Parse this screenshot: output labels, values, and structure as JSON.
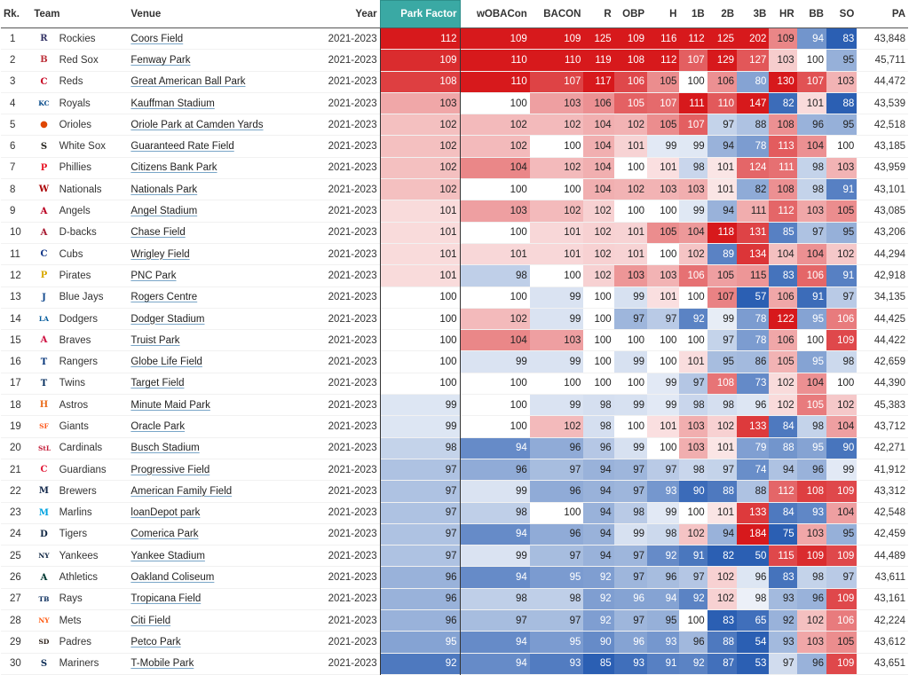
{
  "headers": {
    "rank": "Rk.",
    "team": "Team",
    "venue": "Venue",
    "year": "Year",
    "park_factor": "Park Factor",
    "woba": "wOBACon",
    "bacon": "BACON",
    "r": "R",
    "obp": "OBP",
    "h": "H",
    "b1": "1B",
    "b2": "2B",
    "b3": "3B",
    "hr": "HR",
    "bb": "BB",
    "so": "SO",
    "pa": "PA"
  },
  "rows": [
    {
      "rank": "1",
      "team": "Rockies",
      "logo_icon": "rockies-logo-icon",
      "logo_char": "R",
      "logo_color": "#333366",
      "venue": "Coors Field",
      "year": "2021-2023",
      "pf": "112",
      "woba": "109",
      "bacon": "109",
      "r": "125",
      "obp": "109",
      "h": "116",
      "b1": "112",
      "b2": "125",
      "b3": "202",
      "hr": "109",
      "bb": "94",
      "so": "83",
      "pa": "43,848"
    },
    {
      "rank": "2",
      "team": "Red Sox",
      "logo_icon": "red-sox-logo-icon",
      "logo_char": "B",
      "logo_color": "#bd3039",
      "venue": "Fenway Park",
      "year": "2021-2023",
      "pf": "109",
      "woba": "110",
      "bacon": "110",
      "r": "119",
      "obp": "108",
      "h": "112",
      "b1": "107",
      "b2": "129",
      "b3": "127",
      "hr": "103",
      "bb": "100",
      "so": "95",
      "pa": "45,711"
    },
    {
      "rank": "3",
      "team": "Reds",
      "logo_icon": "reds-logo-icon",
      "logo_char": "C",
      "logo_color": "#c6011f",
      "venue": "Great American Ball Park",
      "year": "2021-2023",
      "pf": "108",
      "woba": "110",
      "bacon": "107",
      "r": "117",
      "obp": "106",
      "h": "105",
      "b1": "100",
      "b2": "106",
      "b3": "80",
      "hr": "130",
      "bb": "107",
      "so": "103",
      "pa": "44,472"
    },
    {
      "rank": "4",
      "team": "Royals",
      "logo_icon": "royals-logo-icon",
      "logo_char": "KC",
      "logo_color": "#004687",
      "venue": "Kauffman Stadium",
      "year": "2021-2023",
      "pf": "103",
      "woba": "100",
      "bacon": "103",
      "r": "106",
      "obp": "105",
      "h": "107",
      "b1": "111",
      "b2": "110",
      "b3": "147",
      "hr": "82",
      "bb": "101",
      "so": "88",
      "pa": "43,539"
    },
    {
      "rank": "5",
      "team": "Orioles",
      "logo_icon": "orioles-logo-icon",
      "logo_char": "●",
      "logo_color": "#df4601",
      "venue": "Oriole Park at Camden Yards",
      "year": "2021-2023",
      "pf": "102",
      "woba": "102",
      "bacon": "102",
      "r": "104",
      "obp": "102",
      "h": "105",
      "b1": "107",
      "b2": "97",
      "b3": "88",
      "hr": "108",
      "bb": "96",
      "so": "95",
      "pa": "42,518"
    },
    {
      "rank": "6",
      "team": "White Sox",
      "logo_icon": "white-sox-logo-icon",
      "logo_char": "S",
      "logo_color": "#27251f",
      "venue": "Guaranteed Rate Field",
      "year": "2021-2023",
      "pf": "102",
      "woba": "102",
      "bacon": "100",
      "r": "104",
      "obp": "101",
      "h": "99",
      "b1": "99",
      "b2": "94",
      "b3": "78",
      "hr": "113",
      "bb": "104",
      "so": "100",
      "pa": "43,185"
    },
    {
      "rank": "7",
      "team": "Phillies",
      "logo_icon": "phillies-logo-icon",
      "logo_char": "P",
      "logo_color": "#e81828",
      "venue": "Citizens Bank Park",
      "year": "2021-2023",
      "pf": "102",
      "woba": "104",
      "bacon": "102",
      "r": "104",
      "obp": "100",
      "h": "101",
      "b1": "98",
      "b2": "101",
      "b3": "124",
      "hr": "111",
      "bb": "98",
      "so": "103",
      "pa": "43,959"
    },
    {
      "rank": "8",
      "team": "Nationals",
      "logo_icon": "nationals-logo-icon",
      "logo_char": "W",
      "logo_color": "#ab0003",
      "venue": "Nationals Park",
      "year": "2021-2023",
      "pf": "102",
      "woba": "100",
      "bacon": "100",
      "r": "104",
      "obp": "102",
      "h": "103",
      "b1": "103",
      "b2": "101",
      "b3": "82",
      "hr": "108",
      "bb": "98",
      "so": "91",
      "pa": "43,101"
    },
    {
      "rank": "9",
      "team": "Angels",
      "logo_icon": "angels-logo-icon",
      "logo_char": "A",
      "logo_color": "#ba0021",
      "venue": "Angel Stadium",
      "year": "2021-2023",
      "pf": "101",
      "woba": "103",
      "bacon": "102",
      "r": "102",
      "obp": "100",
      "h": "100",
      "b1": "99",
      "b2": "94",
      "b3": "111",
      "hr": "112",
      "bb": "103",
      "so": "105",
      "pa": "43,085"
    },
    {
      "rank": "10",
      "team": "D-backs",
      "logo_icon": "dbacks-logo-icon",
      "logo_char": "A",
      "logo_color": "#a71930",
      "venue": "Chase Field",
      "year": "2021-2023",
      "pf": "101",
      "woba": "100",
      "bacon": "101",
      "r": "102",
      "obp": "101",
      "h": "105",
      "b1": "104",
      "b2": "118",
      "b3": "131",
      "hr": "85",
      "bb": "97",
      "so": "95",
      "pa": "43,206"
    },
    {
      "rank": "11",
      "team": "Cubs",
      "logo_icon": "cubs-logo-icon",
      "logo_char": "C",
      "logo_color": "#0e3386",
      "venue": "Wrigley Field",
      "year": "2021-2023",
      "pf": "101",
      "woba": "101",
      "bacon": "101",
      "r": "102",
      "obp": "101",
      "h": "100",
      "b1": "102",
      "b2": "89",
      "b3": "134",
      "hr": "104",
      "bb": "104",
      "so": "102",
      "pa": "44,294"
    },
    {
      "rank": "12",
      "team": "Pirates",
      "logo_icon": "pirates-logo-icon",
      "logo_char": "P",
      "logo_color": "#d8a800",
      "venue": "PNC Park",
      "year": "2021-2023",
      "pf": "101",
      "woba": "98",
      "bacon": "100",
      "r": "102",
      "obp": "103",
      "h": "103",
      "b1": "106",
      "b2": "105",
      "b3": "115",
      "hr": "83",
      "bb": "106",
      "so": "91",
      "pa": "42,918"
    },
    {
      "rank": "13",
      "team": "Blue Jays",
      "logo_icon": "blue-jays-logo-icon",
      "logo_char": "J",
      "logo_color": "#134a8e",
      "venue": "Rogers Centre",
      "year": "2021-2023",
      "pf": "100",
      "woba": "100",
      "bacon": "99",
      "r": "100",
      "obp": "99",
      "h": "101",
      "b1": "100",
      "b2": "107",
      "b3": "57",
      "hr": "106",
      "bb": "91",
      "so": "97",
      "pa": "34,135"
    },
    {
      "rank": "14",
      "team": "Dodgers",
      "logo_icon": "dodgers-logo-icon",
      "logo_char": "LA",
      "logo_color": "#005a9c",
      "venue": "Dodger Stadium",
      "year": "2021-2023",
      "pf": "100",
      "woba": "102",
      "bacon": "99",
      "r": "100",
      "obp": "97",
      "h": "97",
      "b1": "92",
      "b2": "99",
      "b3": "78",
      "hr": "122",
      "bb": "95",
      "so": "106",
      "pa": "44,425"
    },
    {
      "rank": "15",
      "team": "Braves",
      "logo_icon": "braves-logo-icon",
      "logo_char": "A",
      "logo_color": "#ce1141",
      "venue": "Truist Park",
      "year": "2021-2023",
      "pf": "100",
      "woba": "104",
      "bacon": "103",
      "r": "100",
      "obp": "100",
      "h": "100",
      "b1": "100",
      "b2": "97",
      "b3": "78",
      "hr": "106",
      "bb": "100",
      "so": "109",
      "pa": "44,422"
    },
    {
      "rank": "16",
      "team": "Rangers",
      "logo_icon": "rangers-logo-icon",
      "logo_char": "T",
      "logo_color": "#003278",
      "venue": "Globe Life Field",
      "year": "2021-2023",
      "pf": "100",
      "woba": "99",
      "bacon": "99",
      "r": "100",
      "obp": "99",
      "h": "100",
      "b1": "101",
      "b2": "95",
      "b3": "86",
      "hr": "105",
      "bb": "95",
      "so": "98",
      "pa": "42,659"
    },
    {
      "rank": "17",
      "team": "Twins",
      "logo_icon": "twins-logo-icon",
      "logo_char": "T",
      "logo_color": "#002b5c",
      "venue": "Target Field",
      "year": "2021-2023",
      "pf": "100",
      "woba": "100",
      "bacon": "100",
      "r": "100",
      "obp": "100",
      "h": "99",
      "b1": "97",
      "b2": "108",
      "b3": "73",
      "hr": "102",
      "bb": "104",
      "so": "100",
      "pa": "44,390"
    },
    {
      "rank": "18",
      "team": "Astros",
      "logo_icon": "astros-logo-icon",
      "logo_char": "H",
      "logo_color": "#eb6e1f",
      "venue": "Minute Maid Park",
      "year": "2021-2023",
      "pf": "99",
      "woba": "100",
      "bacon": "99",
      "r": "98",
      "obp": "99",
      "h": "99",
      "b1": "98",
      "b2": "98",
      "b3": "96",
      "hr": "102",
      "bb": "105",
      "so": "102",
      "pa": "45,383"
    },
    {
      "rank": "19",
      "team": "Giants",
      "logo_icon": "giants-logo-icon",
      "logo_char": "SF",
      "logo_color": "#fd5a1e",
      "venue": "Oracle Park",
      "year": "2021-2023",
      "pf": "99",
      "woba": "100",
      "bacon": "102",
      "r": "98",
      "obp": "100",
      "h": "101",
      "b1": "103",
      "b2": "102",
      "b3": "133",
      "hr": "84",
      "bb": "98",
      "so": "104",
      "pa": "43,712"
    },
    {
      "rank": "20",
      "team": "Cardinals",
      "logo_icon": "cardinals-logo-icon",
      "logo_char": "StL",
      "logo_color": "#c41e3a",
      "venue": "Busch Stadium",
      "year": "2021-2023",
      "pf": "98",
      "woba": "94",
      "bacon": "96",
      "r": "96",
      "obp": "99",
      "h": "100",
      "b1": "103",
      "b2": "101",
      "b3": "79",
      "hr": "88",
      "bb": "95",
      "so": "90",
      "pa": "42,271"
    },
    {
      "rank": "21",
      "team": "Guardians",
      "logo_icon": "guardians-logo-icon",
      "logo_char": "C",
      "logo_color": "#e31937",
      "venue": "Progressive Field",
      "year": "2021-2023",
      "pf": "97",
      "woba": "96",
      "bacon": "97",
      "r": "94",
      "obp": "97",
      "h": "97",
      "b1": "98",
      "b2": "97",
      "b3": "74",
      "hr": "94",
      "bb": "96",
      "so": "99",
      "pa": "41,912"
    },
    {
      "rank": "22",
      "team": "Brewers",
      "logo_icon": "brewers-logo-icon",
      "logo_char": "M",
      "logo_color": "#12284b",
      "venue": "American Family Field",
      "year": "2021-2023",
      "pf": "97",
      "woba": "99",
      "bacon": "96",
      "r": "94",
      "obp": "97",
      "h": "93",
      "b1": "90",
      "b2": "88",
      "b3": "88",
      "hr": "112",
      "bb": "108",
      "so": "109",
      "pa": "43,312"
    },
    {
      "rank": "23",
      "team": "Marlins",
      "logo_icon": "marlins-logo-icon",
      "logo_char": "M",
      "logo_color": "#00a3e0",
      "venue": "loanDepot park",
      "year": "2021-2023",
      "pf": "97",
      "woba": "98",
      "bacon": "100",
      "r": "94",
      "obp": "98",
      "h": "99",
      "b1": "100",
      "b2": "101",
      "b3": "133",
      "hr": "84",
      "bb": "93",
      "so": "104",
      "pa": "42,548"
    },
    {
      "rank": "24",
      "team": "Tigers",
      "logo_icon": "tigers-logo-icon",
      "logo_char": "D",
      "logo_color": "#0c2340",
      "venue": "Comerica Park",
      "year": "2021-2023",
      "pf": "97",
      "woba": "94",
      "bacon": "96",
      "r": "94",
      "obp": "99",
      "h": "98",
      "b1": "102",
      "b2": "94",
      "b3": "184",
      "hr": "75",
      "bb": "103",
      "so": "95",
      "pa": "42,459"
    },
    {
      "rank": "25",
      "team": "Yankees",
      "logo_icon": "yankees-logo-icon",
      "logo_char": "NY",
      "logo_color": "#0c2340",
      "venue": "Yankee Stadium",
      "year": "2021-2023",
      "pf": "97",
      "woba": "99",
      "bacon": "97",
      "r": "94",
      "obp": "97",
      "h": "92",
      "b1": "91",
      "b2": "82",
      "b3": "50",
      "hr": "115",
      "bb": "109",
      "so": "109",
      "pa": "44,489"
    },
    {
      "rank": "26",
      "team": "Athletics",
      "logo_icon": "athletics-logo-icon",
      "logo_char": "A",
      "logo_color": "#003831",
      "venue": "Oakland Coliseum",
      "year": "2021-2023",
      "pf": "96",
      "woba": "94",
      "bacon": "95",
      "r": "92",
      "obp": "97",
      "h": "96",
      "b1": "97",
      "b2": "102",
      "b3": "96",
      "hr": "83",
      "bb": "98",
      "so": "97",
      "pa": "43,611"
    },
    {
      "rank": "27",
      "team": "Rays",
      "logo_icon": "rays-logo-icon",
      "logo_char": "TB",
      "logo_color": "#092c5c",
      "venue": "Tropicana Field",
      "year": "2021-2023",
      "pf": "96",
      "woba": "98",
      "bacon": "98",
      "r": "92",
      "obp": "96",
      "h": "94",
      "b1": "92",
      "b2": "102",
      "b3": "98",
      "hr": "93",
      "bb": "96",
      "so": "109",
      "pa": "43,161"
    },
    {
      "rank": "28",
      "team": "Mets",
      "logo_icon": "mets-logo-icon",
      "logo_char": "NY",
      "logo_color": "#ff5910",
      "venue": "Citi Field",
      "year": "2021-2023",
      "pf": "96",
      "woba": "97",
      "bacon": "97",
      "r": "92",
      "obp": "97",
      "h": "95",
      "b1": "100",
      "b2": "83",
      "b3": "65",
      "hr": "92",
      "bb": "102",
      "so": "106",
      "pa": "42,224"
    },
    {
      "rank": "29",
      "team": "Padres",
      "logo_icon": "padres-logo-icon",
      "logo_char": "SD",
      "logo_color": "#2f241d",
      "venue": "Petco Park",
      "year": "2021-2023",
      "pf": "95",
      "woba": "94",
      "bacon": "95",
      "r": "90",
      "obp": "96",
      "h": "93",
      "b1": "96",
      "b2": "88",
      "b3": "54",
      "hr": "93",
      "bb": "103",
      "so": "105",
      "pa": "43,612"
    },
    {
      "rank": "30",
      "team": "Mariners",
      "logo_icon": "mariners-logo-icon",
      "logo_char": "S",
      "logo_color": "#0c2c56",
      "venue": "T-Mobile Park",
      "year": "2021-2023",
      "pf": "92",
      "woba": "94",
      "bacon": "93",
      "r": "85",
      "obp": "93",
      "h": "91",
      "b1": "92",
      "b2": "87",
      "b3": "53",
      "hr": "97",
      "bb": "96",
      "so": "109",
      "pa": "43,651"
    }
  ],
  "colors": {
    "high": "#d7191c",
    "neutral": "#ffffff",
    "low": "#2b5fb3",
    "header_highlight": "#3aa9a4"
  }
}
